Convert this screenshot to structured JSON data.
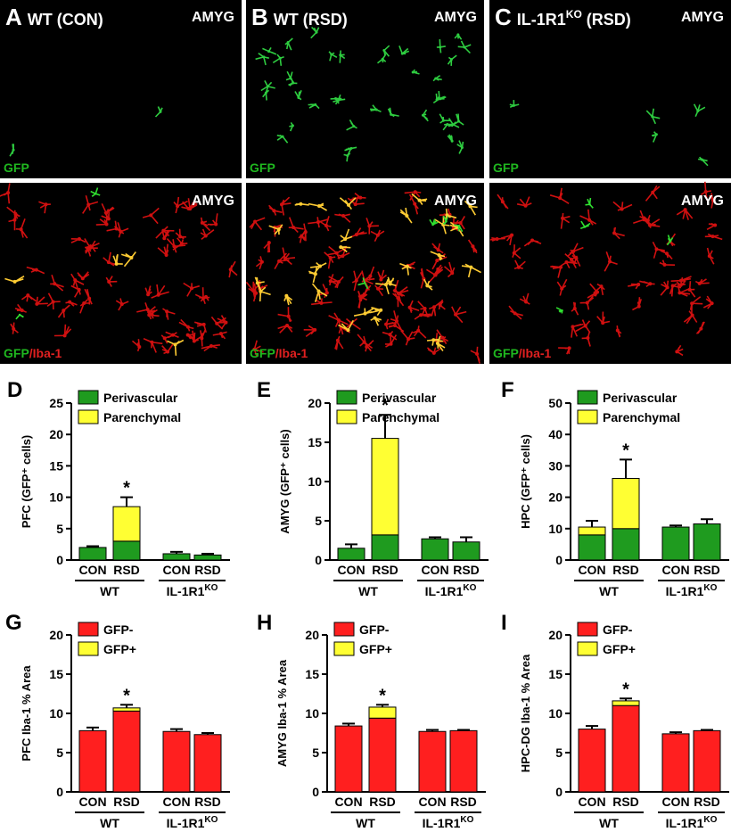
{
  "images": [
    {
      "letter": "A",
      "title": "WT (CON)",
      "region_top": "AMYG",
      "region_bottom": "AMYG",
      "stain_top": "GFP",
      "stain_green": "GFP",
      "stain_red": "/Iba-1"
    },
    {
      "letter": "B",
      "title": "WT (RSD)",
      "region_top": "AMYG",
      "region_bottom": "AMYG",
      "stain_top": "GFP",
      "stain_green": "GFP",
      "stain_red": "/Iba-1"
    },
    {
      "letter": "C",
      "title": "IL-1R1",
      "title_sup": "KO",
      "title_suffix": " (RSD)",
      "region_top": "AMYG",
      "region_bottom": "AMYG",
      "stain_top": "GFP",
      "stain_green": "GFP",
      "stain_red": "/Iba-1"
    }
  ],
  "chart_data": [
    {
      "type": "bar",
      "panel": "D",
      "ylabel": "PFC (GFP⁺ cells)",
      "categories": [
        "CON",
        "RSD",
        "CON",
        "RSD"
      ],
      "groups": [
        {
          "label": "WT"
        },
        {
          "label": "IL-1R1",
          "sup": "KO"
        }
      ],
      "series": [
        {
          "name": "Perivascular",
          "color": "#1f9b1f",
          "values": [
            2.0,
            3.0,
            1.0,
            0.8
          ]
        },
        {
          "name": "Parenchymal",
          "color": "#ffff33",
          "values": [
            0,
            5.5,
            0,
            0
          ],
          "errors": [
            0.2,
            1.5,
            0.3,
            0.2
          ]
        }
      ],
      "significance": [
        null,
        "*",
        null,
        null
      ],
      "ylim": [
        0,
        25
      ],
      "yticks": [
        0,
        5,
        10,
        15,
        20,
        25
      ]
    },
    {
      "type": "bar",
      "panel": "E",
      "ylabel": "AMYG (GFP⁺ cells)",
      "categories": [
        "CON",
        "RSD",
        "CON",
        "RSD"
      ],
      "groups": [
        {
          "label": "WT"
        },
        {
          "label": "IL-1R1",
          "sup": "KO"
        }
      ],
      "series": [
        {
          "name": "Perivascular",
          "color": "#1f9b1f",
          "values": [
            1.5,
            3.2,
            2.7,
            2.3
          ]
        },
        {
          "name": "Parenchymal",
          "color": "#ffff33",
          "values": [
            0,
            12.3,
            0,
            0
          ],
          "errors": [
            0.5,
            3.0,
            0.2,
            0.6
          ]
        }
      ],
      "significance": [
        null,
        "*",
        null,
        null
      ],
      "ylim": [
        0,
        20
      ],
      "yticks": [
        0,
        5,
        10,
        15,
        20
      ]
    },
    {
      "type": "bar",
      "panel": "F",
      "ylabel": "HPC (GFP⁺ cells)",
      "categories": [
        "CON",
        "RSD",
        "CON",
        "RSD"
      ],
      "groups": [
        {
          "label": "WT"
        },
        {
          "label": "IL-1R1",
          "sup": "KO"
        }
      ],
      "series": [
        {
          "name": "Perivascular",
          "color": "#1f9b1f",
          "values": [
            8.0,
            10.0,
            10.5,
            11.5
          ]
        },
        {
          "name": "Parenchymal",
          "color": "#ffff33",
          "values": [
            2.5,
            16.0,
            0,
            0
          ],
          "errors": [
            2.0,
            6.0,
            0.5,
            1.5
          ]
        }
      ],
      "significance": [
        null,
        "*",
        null,
        null
      ],
      "ylim": [
        0,
        50
      ],
      "yticks": [
        0,
        10,
        20,
        30,
        40,
        50
      ]
    },
    {
      "type": "bar",
      "panel": "G",
      "ylabel": "PFC Iba-1 % Area",
      "categories": [
        "CON",
        "RSD",
        "CON",
        "RSD"
      ],
      "groups": [
        {
          "label": "WT"
        },
        {
          "label": "IL-1R1",
          "sup": "KO"
        }
      ],
      "series": [
        {
          "name": "GFP-",
          "color": "#ff1f1f",
          "values": [
            7.8,
            10.3,
            7.7,
            7.3
          ]
        },
        {
          "name": "GFP+",
          "color": "#ffff33",
          "values": [
            0,
            0.4,
            0,
            0
          ],
          "errors": [
            0.4,
            0.4,
            0.3,
            0.2
          ]
        }
      ],
      "significance": [
        null,
        "*",
        null,
        null
      ],
      "ylim": [
        0,
        20
      ],
      "yticks": [
        0,
        5,
        10,
        15,
        20
      ]
    },
    {
      "type": "bar",
      "panel": "H",
      "ylabel": "AMYG Iba-1 % Area",
      "categories": [
        "CON",
        "RSD",
        "CON",
        "RSD"
      ],
      "groups": [
        {
          "label": "WT"
        },
        {
          "label": "IL-1R1",
          "sup": "KO"
        }
      ],
      "series": [
        {
          "name": "GFP-",
          "color": "#ff1f1f",
          "values": [
            8.4,
            9.4,
            7.7,
            7.8
          ]
        },
        {
          "name": "GFP+",
          "color": "#ffff33",
          "values": [
            0,
            1.4,
            0,
            0
          ],
          "errors": [
            0.3,
            0.3,
            0.2,
            0.1
          ]
        }
      ],
      "significance": [
        null,
        "*",
        null,
        null
      ],
      "ylim": [
        0,
        20
      ],
      "yticks": [
        0,
        5,
        10,
        15,
        20
      ]
    },
    {
      "type": "bar",
      "panel": "I",
      "ylabel": "HPC-DG Iba-1 % Area",
      "categories": [
        "CON",
        "RSD",
        "CON",
        "RSD"
      ],
      "groups": [
        {
          "label": "WT"
        },
        {
          "label": "IL-1R1",
          "sup": "KO"
        }
      ],
      "series": [
        {
          "name": "GFP-",
          "color": "#ff1f1f",
          "values": [
            8.0,
            11.0,
            7.4,
            7.8
          ]
        },
        {
          "name": "GFP+",
          "color": "#ffff33",
          "values": [
            0,
            0.6,
            0,
            0
          ],
          "errors": [
            0.4,
            0.3,
            0.2,
            0.1
          ]
        }
      ],
      "significance": [
        null,
        "*",
        null,
        null
      ],
      "ylim": [
        0,
        20
      ],
      "yticks": [
        0,
        5,
        10,
        15,
        20
      ]
    }
  ]
}
